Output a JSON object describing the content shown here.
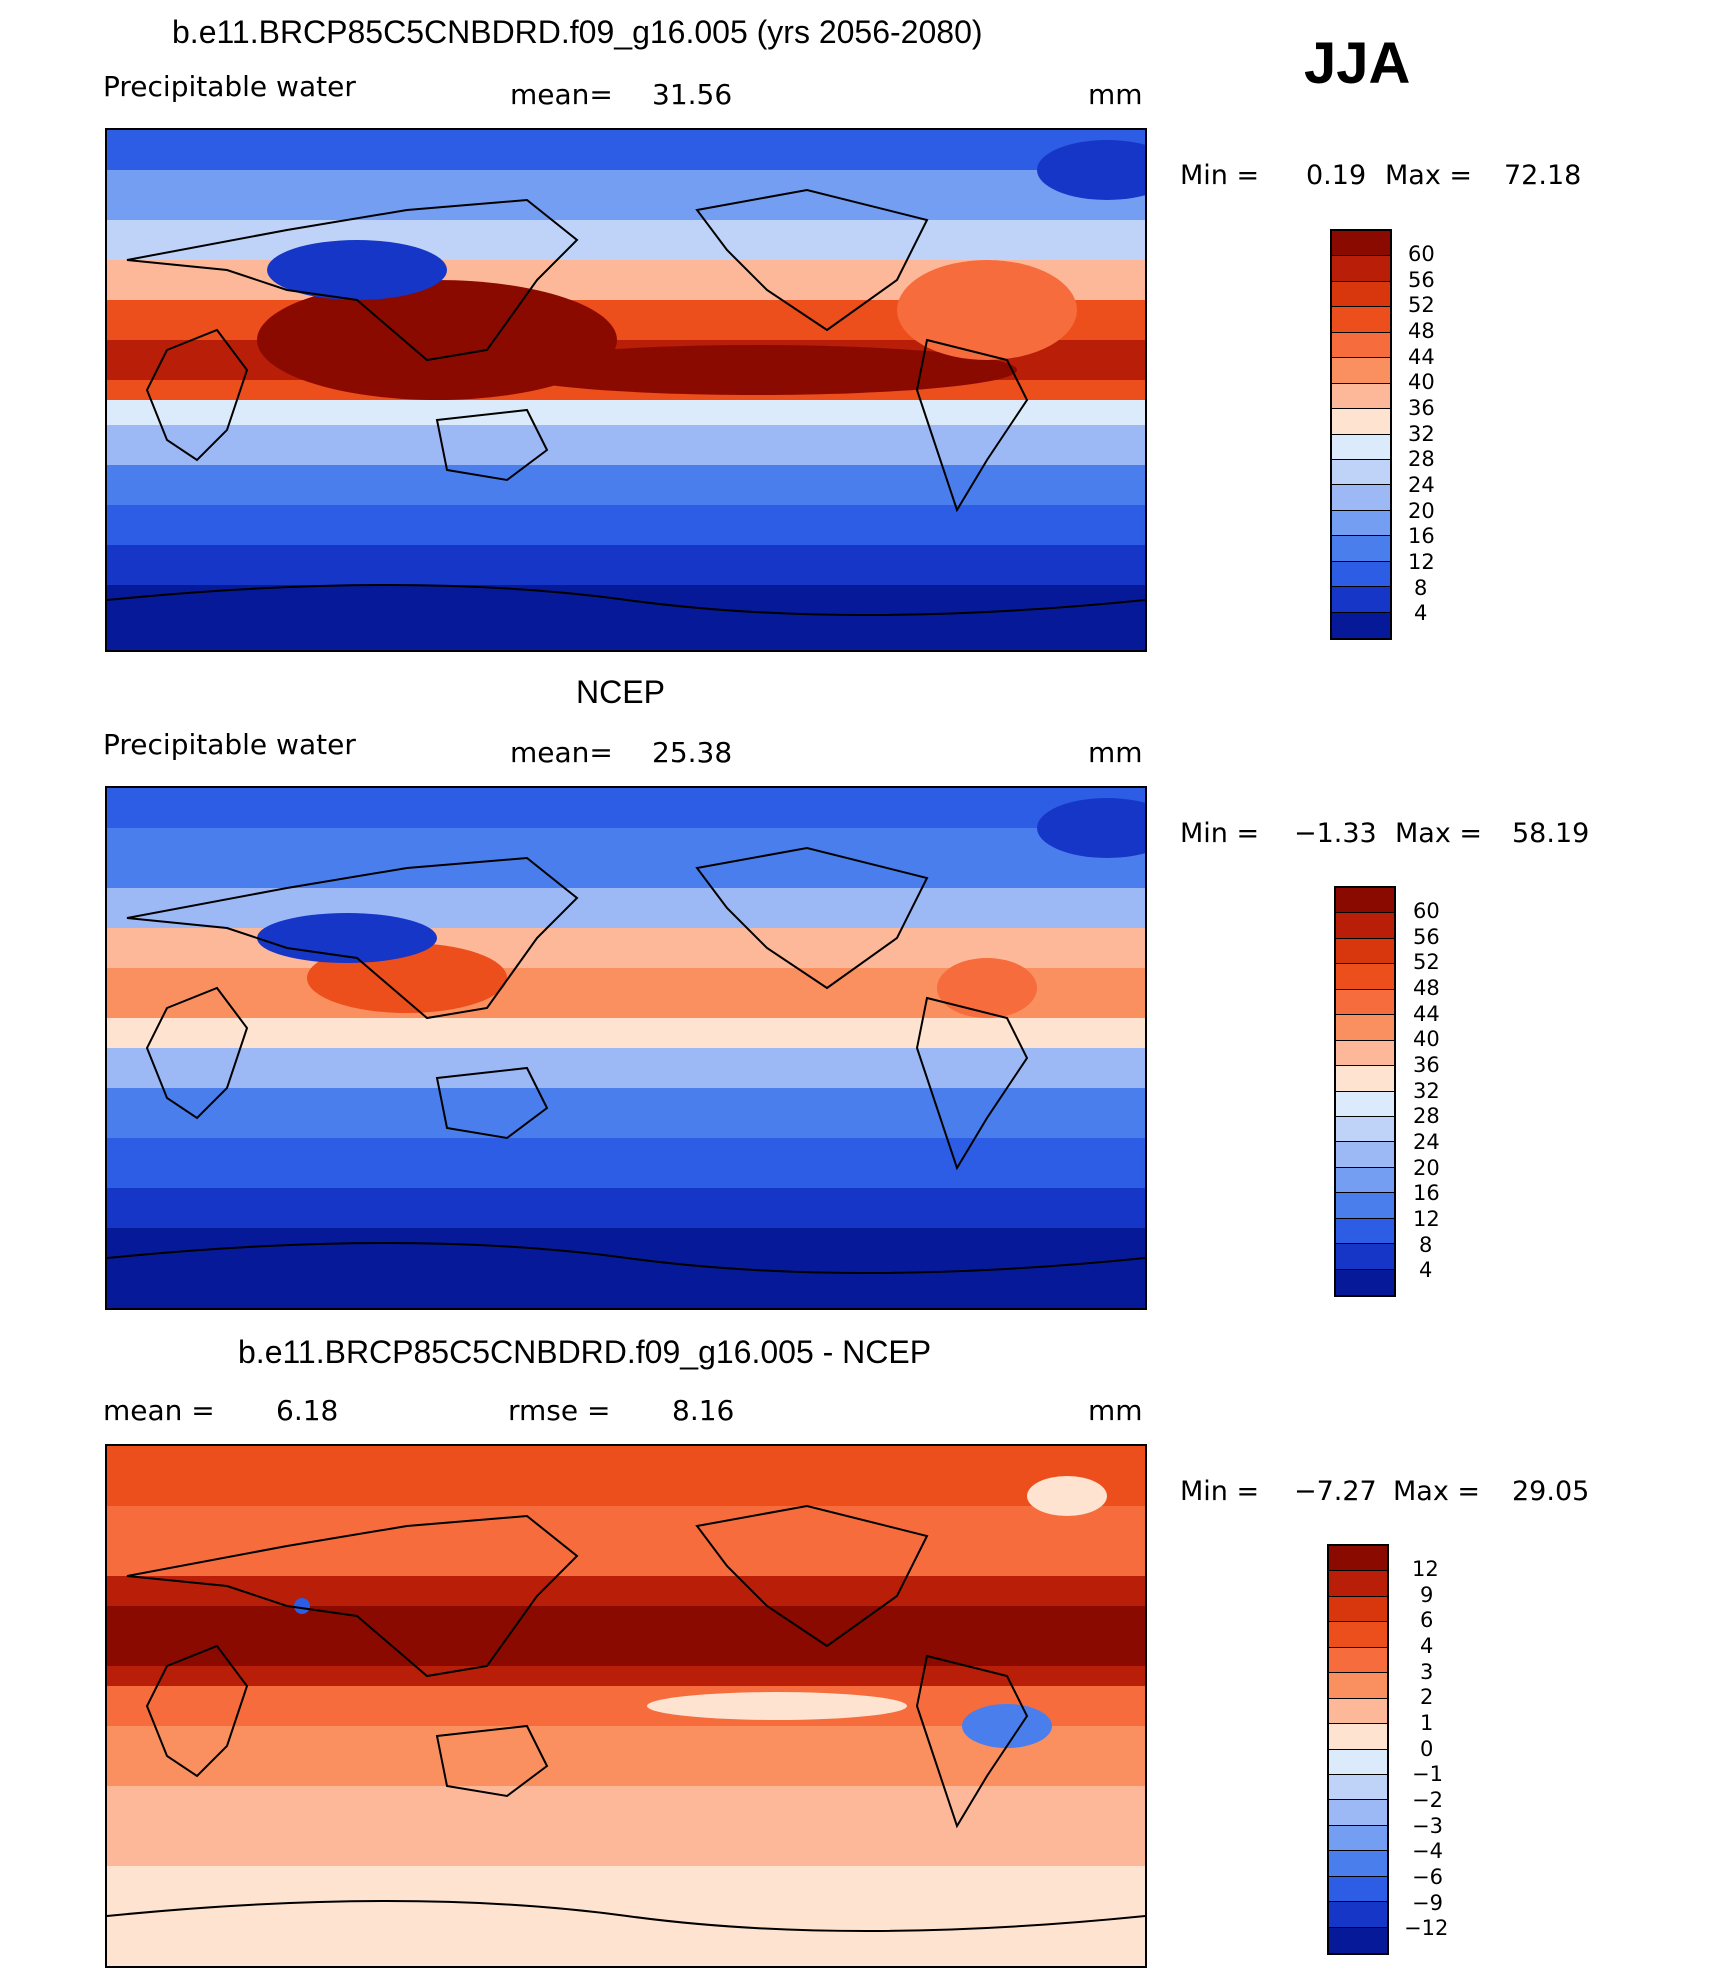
{
  "season": "JJA",
  "panels": [
    {
      "title": "b.e11.BRCP85C5CNBDRD.f09_g16.005 (yrs 2056-2080)",
      "variable": "Precipitable water",
      "stat1_label": "mean=",
      "stat1_value": "31.56",
      "units": "mm",
      "min_label": "Min =",
      "min_value": "0.19",
      "max_label": "Max =",
      "max_value": "72.18",
      "colorbar_levels": [
        "60",
        "56",
        "52",
        "48",
        "44",
        "40",
        "36",
        "32",
        "28",
        "24",
        "20",
        "16",
        "12",
        "8",
        "4"
      ],
      "colorbar_colors": [
        "#8b0a00",
        "#b81e08",
        "#d8360c",
        "#ec4e1c",
        "#f66c3c",
        "#fa9060",
        "#fcb898",
        "#fde3d0",
        "#dcebfb",
        "#bfd3f8",
        "#9cb9f6",
        "#739ef2",
        "#4a7eec",
        "#2c5de4",
        "#1636c8",
        "#061a99"
      ]
    },
    {
      "title": "NCEP",
      "variable": "Precipitable water",
      "stat1_label": "mean=",
      "stat1_value": "25.38",
      "units": "mm",
      "min_label": "Min =",
      "min_value": "−1.33",
      "max_label": "Max =",
      "max_value": "58.19",
      "colorbar_levels": [
        "60",
        "56",
        "52",
        "48",
        "44",
        "40",
        "36",
        "32",
        "28",
        "24",
        "20",
        "16",
        "12",
        "8",
        "4"
      ],
      "colorbar_colors": [
        "#8b0a00",
        "#b81e08",
        "#d8360c",
        "#ec4e1c",
        "#f66c3c",
        "#fa9060",
        "#fcb898",
        "#fde3d0",
        "#dcebfb",
        "#bfd3f8",
        "#9cb9f6",
        "#739ef2",
        "#4a7eec",
        "#2c5de4",
        "#1636c8",
        "#061a99"
      ]
    },
    {
      "title": "b.e11.BRCP85C5CNBDRD.f09_g16.005 - NCEP",
      "stat1_label": "mean =",
      "stat1_value": "6.18",
      "stat2_label": "rmse =",
      "stat2_value": "8.16",
      "units": "mm",
      "min_label": "Min =",
      "min_value": "−7.27",
      "max_label": "Max =",
      "max_value": "29.05",
      "colorbar_levels": [
        "12",
        "9",
        "6",
        "4",
        "3",
        "2",
        "1",
        "0",
        "−1",
        "−2",
        "−3",
        "−4",
        "−6",
        "−9",
        "−12"
      ],
      "colorbar_colors": [
        "#8b0a00",
        "#b81e08",
        "#d8360c",
        "#ec4e1c",
        "#f66c3c",
        "#fa9060",
        "#fcb898",
        "#fde3d0",
        "#dcebfb",
        "#bfd3f8",
        "#9cb9f6",
        "#739ef2",
        "#4a7eec",
        "#2c5de4",
        "#1636c8",
        "#061a99"
      ]
    }
  ]
}
